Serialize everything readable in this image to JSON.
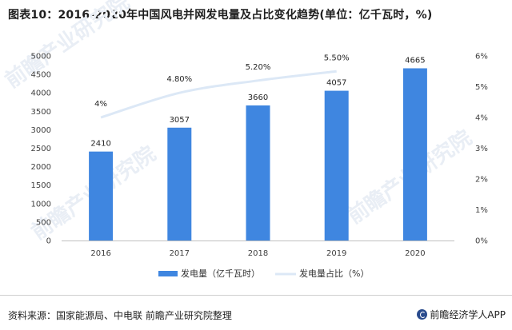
{
  "title": "图表10：2016-2020年中国风电并网发电量及占比变化趋势(单位：亿千瓦时，%)",
  "source": "资料来源：国家能源局、中电联 前瞻产业研究院整理",
  "brand": "前瞻经济学人APP",
  "watermark": "前瞻产业研究院",
  "colors": {
    "bar": "#3f86e0",
    "line": "#dce8f6"
  },
  "chart_data": {
    "type": "bar",
    "categories": [
      "2016",
      "2017",
      "2018",
      "2019",
      "2020"
    ],
    "series": [
      {
        "name": "发电量（亿千瓦时）",
        "type": "bar",
        "axis": "left",
        "values": [
          2410,
          3057,
          3660,
          4057,
          4665
        ],
        "labels": [
          "2410",
          "3057",
          "3660",
          "4057",
          "4665"
        ]
      },
      {
        "name": "发电量占比（%）",
        "type": "line",
        "axis": "right",
        "values": [
          4.0,
          4.8,
          5.2,
          5.5,
          null
        ],
        "labels": [
          "4%",
          "4.80%",
          "5.20%",
          "5.50%",
          ""
        ]
      }
    ],
    "ylim_left": [
      0,
      5000
    ],
    "yticks_left": [
      "0",
      "500",
      "1000",
      "1500",
      "2000",
      "2500",
      "3000",
      "3500",
      "4000",
      "4500",
      "5000"
    ],
    "ylim_right": [
      0,
      6
    ],
    "yticks_right": [
      "0%",
      "1%",
      "2%",
      "3%",
      "4%",
      "5%",
      "6%"
    ],
    "legend_position": "bottom",
    "grid": false
  }
}
